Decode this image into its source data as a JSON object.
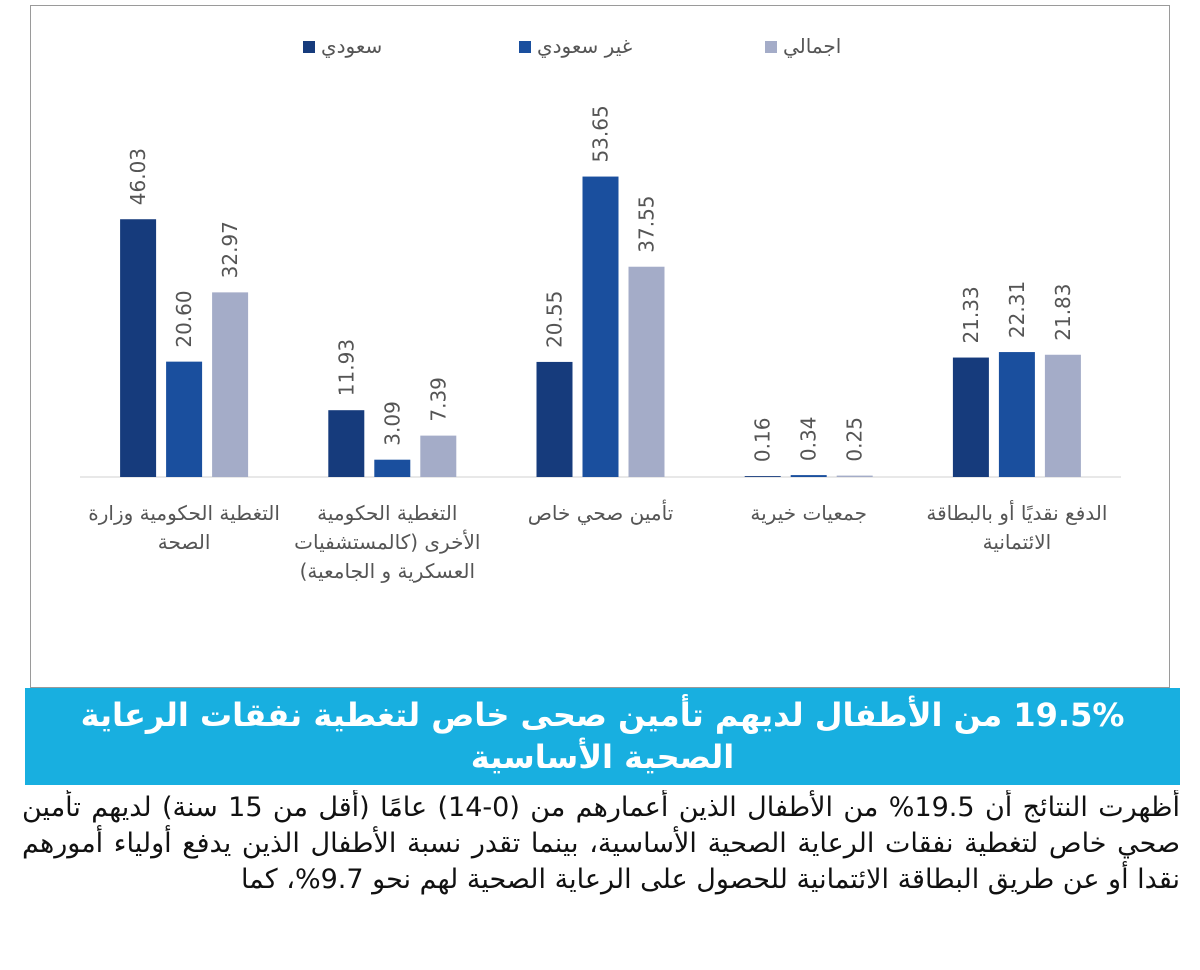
{
  "chart_data": {
    "type": "bar",
    "categories": [
      "التغطية الحكومية وزارة الصحة",
      "التغطية الحكومية الأخرى (كالمستشفيات العسكرية و الجامعية)",
      "تأمين صحي خاص",
      "جمعيات خيرية",
      "الدفع نقديًا أو بالبطاقة الائتمانية"
    ],
    "series": [
      {
        "name": "سعودي",
        "color": "#163b7c",
        "values": [
          46.03,
          11.93,
          20.55,
          0.16,
          21.33
        ],
        "value_labels": [
          "46.03",
          "11.93",
          "20.55",
          "0.16",
          "21.33"
        ]
      },
      {
        "name": "غير سعودي",
        "color": "#1a4f9e",
        "values": [
          20.6,
          3.09,
          53.65,
          0.34,
          22.31
        ],
        "value_labels": [
          "20.60",
          "3.09",
          "53.65",
          "0.34",
          "22.31"
        ]
      },
      {
        "name": "اجمالي",
        "color": "#a4acc8",
        "values": [
          32.97,
          7.39,
          37.55,
          0.25,
          21.83
        ],
        "value_labels": [
          "32.97",
          "7.39",
          "37.55",
          "0.25",
          "21.83"
        ]
      }
    ],
    "ylim": [
      0,
      60
    ]
  },
  "headline": "19.5% من الأطفال لديهم تأمين صحى خاص لتغطية نفقات الرعاية الصحية الأساسية",
  "paragraph": "أظهرت النتائج أن 19.5% من الأطفال الذين أعمارهم من (0-14) عامًا (أقل من 15 سنة) لديهم تأمين صحي خاص لتغطية نفقات الرعاية الصحية الأساسية، بينما تقدر نسبة الأطفال الذين يدفع أولياء أمورهم نقدا أو عن طريق البطاقة الائتمانية للحصول على الرعاية الصحية لهم نحو 9.7%، كما"
}
